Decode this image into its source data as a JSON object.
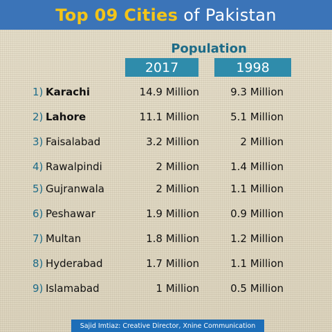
{
  "title": {
    "highlight": "Top 09 Cities",
    "rest": "of Pakistan"
  },
  "header": {
    "population_label": "Population",
    "year_a": "2017",
    "year_b": "1998"
  },
  "cities": [
    {
      "rank": "1)",
      "name": "Karachi",
      "bold": true,
      "pop_2017": "14.9 Million",
      "pop_1998": "9.3 Million"
    },
    {
      "rank": "2)",
      "name": "Lahore",
      "bold": true,
      "pop_2017": "11.1 Million",
      "pop_1998": "5.1 Million"
    },
    {
      "rank": "3)",
      "name": "Faisalabad",
      "bold": false,
      "pop_2017": "3.2 Million",
      "pop_1998": "2 Million"
    },
    {
      "rank": "4)",
      "name": "Rawalpindi",
      "bold": false,
      "pop_2017": "2 Million",
      "pop_1998": "1.4 Million"
    },
    {
      "rank": "5)",
      "name": "Gujranwala",
      "bold": false,
      "pop_2017": "2 Million",
      "pop_1998": "1.1 Million"
    },
    {
      "rank": "6)",
      "name": "Peshawar",
      "bold": false,
      "pop_2017": "1.9 Million",
      "pop_1998": "0.9 Million"
    },
    {
      "rank": "7)",
      "name": "Multan",
      "bold": false,
      "pop_2017": "1.8 Million",
      "pop_1998": "1.2 Million"
    },
    {
      "rank": "8)",
      "name": "Hyderabad",
      "bold": false,
      "pop_2017": "1.7 Million",
      "pop_1998": "1.1 Million"
    },
    {
      "rank": "9)",
      "name": "Islamabad",
      "bold": false,
      "pop_2017": "1 Million",
      "pop_1998": "0.5 Million"
    }
  ],
  "footer": {
    "credit": "Sajid Imtiaz: Creative Director, Xnine Communication"
  },
  "colors": {
    "title_bar": "#3b74b8",
    "title_highlight": "#f3c419",
    "accent_teal": "#1d6b88",
    "year_box": "#2f8cab",
    "footer_bar": "#1d6eb8"
  }
}
